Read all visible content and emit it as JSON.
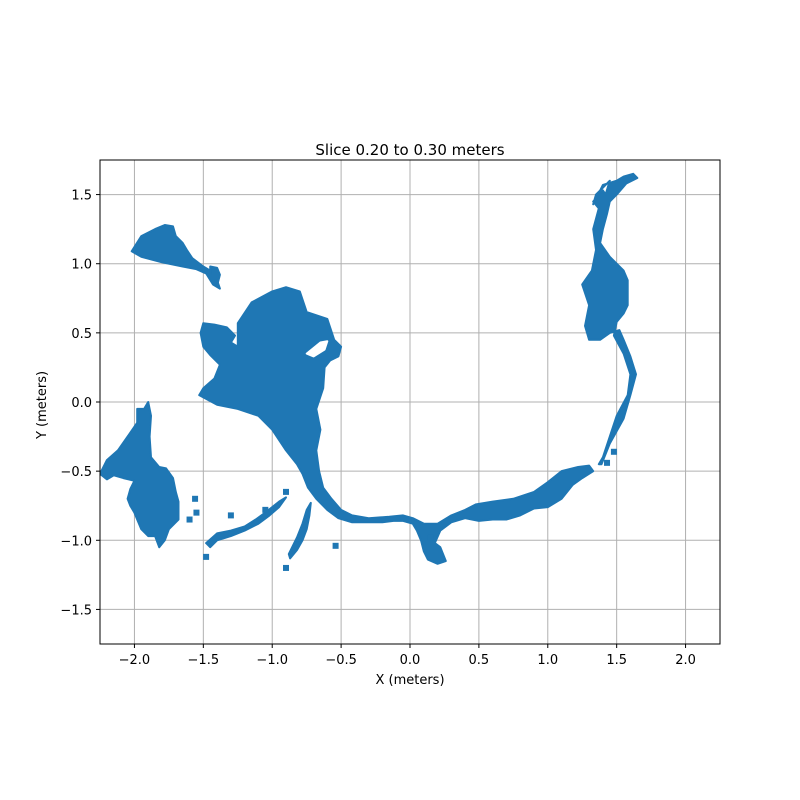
{
  "chart_data": {
    "type": "scatter",
    "title": "Slice 0.20 to 0.30 meters",
    "xlabel": "X (meters)",
    "ylabel": "Y (meters)",
    "xlim": [
      -2.25,
      2.25
    ],
    "ylim": [
      -1.75,
      1.75
    ],
    "xticks": [
      -2.0,
      -1.5,
      -1.0,
      -0.5,
      0.0,
      0.5,
      1.0,
      1.5,
      2.0
    ],
    "xtick_labels": [
      "−2.0",
      "−1.5",
      "−1.0",
      "−0.5",
      "0.0",
      "0.5",
      "1.0",
      "1.5",
      "2.0"
    ],
    "yticks": [
      1.5,
      1.0,
      0.5,
      0.0,
      -0.5,
      -1.0,
      -1.5
    ],
    "ytick_labels": [
      "1.5",
      "1.0",
      "0.5",
      "0.0",
      "−0.5",
      "−1.0",
      "−1.5"
    ],
    "grid": true,
    "series_color": "#1f77b4",
    "grid_color": "#b0b0b0",
    "regions": [
      {
        "name": "upper-left-blob",
        "outline": [
          [
            -2.02,
            1.09
          ],
          [
            -1.95,
            1.2
          ],
          [
            -1.85,
            1.25
          ],
          [
            -1.78,
            1.28
          ],
          [
            -1.72,
            1.27
          ],
          [
            -1.7,
            1.2
          ],
          [
            -1.65,
            1.15
          ],
          [
            -1.62,
            1.1
          ],
          [
            -1.58,
            1.04
          ],
          [
            -1.5,
            0.98
          ],
          [
            -1.45,
            0.95
          ],
          [
            -1.4,
            0.88
          ],
          [
            -1.38,
            0.82
          ],
          [
            -1.43,
            0.85
          ],
          [
            -1.48,
            0.93
          ],
          [
            -1.55,
            0.96
          ],
          [
            -1.65,
            0.98
          ],
          [
            -1.8,
            1.01
          ],
          [
            -1.95,
            1.05
          ]
        ]
      },
      {
        "name": "upper-left-fragment",
        "outline": [
          [
            -1.45,
            0.98
          ],
          [
            -1.4,
            0.97
          ],
          [
            -1.38,
            0.92
          ],
          [
            -1.4,
            0.84
          ],
          [
            -1.43,
            0.86
          ],
          [
            -1.45,
            0.92
          ]
        ]
      },
      {
        "name": "central-mass",
        "outline": [
          [
            -1.5,
            0.57
          ],
          [
            -1.42,
            0.56
          ],
          [
            -1.33,
            0.54
          ],
          [
            -1.27,
            0.48
          ],
          [
            -1.3,
            0.43
          ],
          [
            -1.25,
            0.4
          ],
          [
            -1.25,
            0.57
          ],
          [
            -1.15,
            0.72
          ],
          [
            -1.0,
            0.8
          ],
          [
            -0.9,
            0.83
          ],
          [
            -0.8,
            0.8
          ],
          [
            -0.75,
            0.65
          ],
          [
            -0.6,
            0.6
          ],
          [
            -0.55,
            0.45
          ],
          [
            -0.5,
            0.4
          ],
          [
            -0.52,
            0.33
          ],
          [
            -0.58,
            0.3
          ],
          [
            -0.62,
            0.25
          ],
          [
            -0.63,
            0.1
          ],
          [
            -0.68,
            -0.05
          ],
          [
            -0.65,
            -0.2
          ],
          [
            -0.68,
            -0.35
          ],
          [
            -0.66,
            -0.5
          ],
          [
            -0.63,
            -0.62
          ],
          [
            -0.57,
            -0.7
          ],
          [
            -0.5,
            -0.78
          ],
          [
            -0.42,
            -0.82
          ],
          [
            -0.3,
            -0.84
          ],
          [
            -0.15,
            -0.83
          ],
          [
            -0.05,
            -0.82
          ],
          [
            0.02,
            -0.84
          ],
          [
            0.1,
            -0.88
          ],
          [
            0.2,
            -0.88
          ],
          [
            0.3,
            -0.82
          ],
          [
            0.4,
            -0.78
          ],
          [
            0.48,
            -0.74
          ],
          [
            0.6,
            -0.72
          ],
          [
            0.75,
            -0.7
          ],
          [
            0.9,
            -0.65
          ],
          [
            1.0,
            -0.58
          ],
          [
            1.1,
            -0.5
          ],
          [
            1.22,
            -0.47
          ],
          [
            1.3,
            -0.46
          ],
          [
            1.33,
            -0.5
          ],
          [
            1.25,
            -0.55
          ],
          [
            1.18,
            -0.6
          ],
          [
            1.1,
            -0.7
          ],
          [
            1.0,
            -0.76
          ],
          [
            0.9,
            -0.77
          ],
          [
            0.8,
            -0.82
          ],
          [
            0.7,
            -0.85
          ],
          [
            0.6,
            -0.85
          ],
          [
            0.5,
            -0.86
          ],
          [
            0.4,
            -0.84
          ],
          [
            0.3,
            -0.87
          ],
          [
            0.22,
            -0.93
          ],
          [
            0.18,
            -1.02
          ],
          [
            0.22,
            -1.05
          ],
          [
            0.26,
            -1.15
          ],
          [
            0.2,
            -1.17
          ],
          [
            0.13,
            -1.14
          ],
          [
            0.1,
            -1.08
          ],
          [
            0.08,
            -1.0
          ],
          [
            0.05,
            -0.93
          ],
          [
            0.02,
            -0.88
          ],
          [
            -0.05,
            -0.86
          ],
          [
            -0.12,
            -0.86
          ],
          [
            -0.2,
            -0.87
          ],
          [
            -0.3,
            -0.87
          ],
          [
            -0.42,
            -0.87
          ],
          [
            -0.52,
            -0.84
          ],
          [
            -0.6,
            -0.78
          ],
          [
            -0.68,
            -0.7
          ],
          [
            -0.74,
            -0.62
          ],
          [
            -0.78,
            -0.52
          ],
          [
            -0.82,
            -0.45
          ],
          [
            -0.9,
            -0.35
          ],
          [
            -1.0,
            -0.2
          ],
          [
            -1.1,
            -0.1
          ],
          [
            -1.25,
            -0.05
          ],
          [
            -1.4,
            -0.02
          ],
          [
            -1.53,
            0.05
          ],
          [
            -1.5,
            0.1
          ],
          [
            -1.42,
            0.17
          ],
          [
            -1.38,
            0.27
          ],
          [
            -1.45,
            0.34
          ],
          [
            -1.5,
            0.4
          ],
          [
            -1.52,
            0.5
          ]
        ]
      },
      {
        "name": "central-hole",
        "hole": true,
        "outline": [
          [
            -0.75,
            0.35
          ],
          [
            -0.65,
            0.43
          ],
          [
            -0.6,
            0.44
          ],
          [
            -0.62,
            0.38
          ],
          [
            -0.7,
            0.33
          ]
        ]
      },
      {
        "name": "right-arc",
        "outline": [
          [
            1.55,
            1.63
          ],
          [
            1.62,
            1.65
          ],
          [
            1.65,
            1.62
          ],
          [
            1.57,
            1.58
          ],
          [
            1.5,
            1.5
          ],
          [
            1.45,
            1.45
          ],
          [
            1.43,
            1.36
          ],
          [
            1.4,
            1.25
          ],
          [
            1.38,
            1.15
          ],
          [
            1.45,
            1.05
          ],
          [
            1.5,
            1.0
          ],
          [
            1.55,
            0.95
          ],
          [
            1.58,
            0.88
          ],
          [
            1.58,
            0.7
          ],
          [
            1.55,
            0.64
          ],
          [
            1.5,
            0.58
          ],
          [
            1.48,
            0.48
          ],
          [
            1.55,
            0.35
          ],
          [
            1.6,
            0.2
          ],
          [
            1.58,
            0.05
          ],
          [
            1.5,
            -0.1
          ],
          [
            1.45,
            -0.25
          ],
          [
            1.4,
            -0.4
          ],
          [
            1.37,
            -0.45
          ],
          [
            1.39,
            -0.45
          ],
          [
            1.45,
            -0.3
          ],
          [
            1.55,
            -0.12
          ],
          [
            1.6,
            0.05
          ],
          [
            1.64,
            0.2
          ],
          [
            1.6,
            0.33
          ],
          [
            1.55,
            0.45
          ],
          [
            1.52,
            0.52
          ],
          [
            1.45,
            0.5
          ],
          [
            1.38,
            0.45
          ],
          [
            1.3,
            0.45
          ],
          [
            1.27,
            0.55
          ],
          [
            1.3,
            0.7
          ],
          [
            1.25,
            0.85
          ],
          [
            1.32,
            0.95
          ],
          [
            1.35,
            1.1
          ],
          [
            1.33,
            1.25
          ],
          [
            1.37,
            1.4
          ],
          [
            1.33,
            1.45
          ],
          [
            1.4,
            1.53
          ],
          [
            1.42,
            1.5
          ],
          [
            1.45,
            1.6
          ],
          [
            1.4,
            1.55
          ],
          [
            1.35,
            1.5
          ],
          [
            1.33,
            1.43
          ],
          [
            1.4,
            1.57
          ],
          [
            1.5,
            1.6
          ]
        ]
      },
      {
        "name": "left-cluster",
        "outline": [
          [
            -2.25,
            -0.52
          ],
          [
            -2.2,
            -0.42
          ],
          [
            -2.12,
            -0.35
          ],
          [
            -2.05,
            -0.25
          ],
          [
            -1.98,
            -0.15
          ],
          [
            -1.98,
            -0.05
          ],
          [
            -1.93,
            -0.05
          ],
          [
            -1.9,
            0.0
          ],
          [
            -1.88,
            -0.1
          ],
          [
            -1.89,
            -0.25
          ],
          [
            -1.88,
            -0.4
          ],
          [
            -1.82,
            -0.47
          ],
          [
            -1.77,
            -0.48
          ],
          [
            -1.72,
            -0.55
          ],
          [
            -1.7,
            -0.65
          ],
          [
            -1.68,
            -0.72
          ],
          [
            -1.68,
            -0.78
          ],
          [
            -1.68,
            -0.85
          ],
          [
            -1.75,
            -0.92
          ],
          [
            -1.78,
            -1.0
          ],
          [
            -1.82,
            -1.05
          ],
          [
            -1.85,
            -0.97
          ],
          [
            -1.9,
            -0.97
          ],
          [
            -1.95,
            -0.92
          ],
          [
            -1.98,
            -0.85
          ],
          [
            -2.0,
            -0.8
          ],
          [
            -2.03,
            -0.75
          ],
          [
            -2.05,
            -0.7
          ],
          [
            -2.03,
            -0.63
          ],
          [
            -2.0,
            -0.57
          ],
          [
            -2.08,
            -0.55
          ],
          [
            -2.15,
            -0.53
          ],
          [
            -2.2,
            -0.56
          ]
        ]
      },
      {
        "name": "lower-left-strand",
        "outline": [
          [
            -1.48,
            -1.02
          ],
          [
            -1.4,
            -0.95
          ],
          [
            -1.3,
            -0.93
          ],
          [
            -1.2,
            -0.9
          ],
          [
            -1.12,
            -0.85
          ],
          [
            -1.05,
            -0.8
          ],
          [
            -0.95,
            -0.72
          ],
          [
            -0.9,
            -0.69
          ],
          [
            -0.95,
            -0.76
          ],
          [
            -1.02,
            -0.82
          ],
          [
            -1.1,
            -0.88
          ],
          [
            -1.2,
            -0.93
          ],
          [
            -1.3,
            -0.97
          ],
          [
            -1.4,
            -1.0
          ],
          [
            -1.45,
            -1.05
          ]
        ]
      },
      {
        "name": "lower-mid-strand",
        "outline": [
          [
            -0.88,
            -1.1
          ],
          [
            -0.82,
            -0.98
          ],
          [
            -0.78,
            -0.88
          ],
          [
            -0.75,
            -0.78
          ],
          [
            -0.72,
            -0.73
          ],
          [
            -0.73,
            -0.82
          ],
          [
            -0.75,
            -0.92
          ],
          [
            -0.78,
            -1.0
          ],
          [
            -0.82,
            -1.07
          ],
          [
            -0.87,
            -1.13
          ]
        ]
      }
    ],
    "squares": [
      [
        -1.56,
        -0.7
      ],
      [
        -1.55,
        -0.8
      ],
      [
        -1.6,
        -0.85
      ],
      [
        -1.3,
        -0.82
      ],
      [
        -1.05,
        -0.78
      ],
      [
        -0.9,
        -0.65
      ],
      [
        -0.54,
        -1.04
      ],
      [
        1.43,
        -0.44
      ],
      [
        1.48,
        -0.36
      ],
      [
        0.15,
        -0.98
      ],
      [
        -0.9,
        -1.2
      ],
      [
        -1.48,
        -1.12
      ]
    ]
  }
}
